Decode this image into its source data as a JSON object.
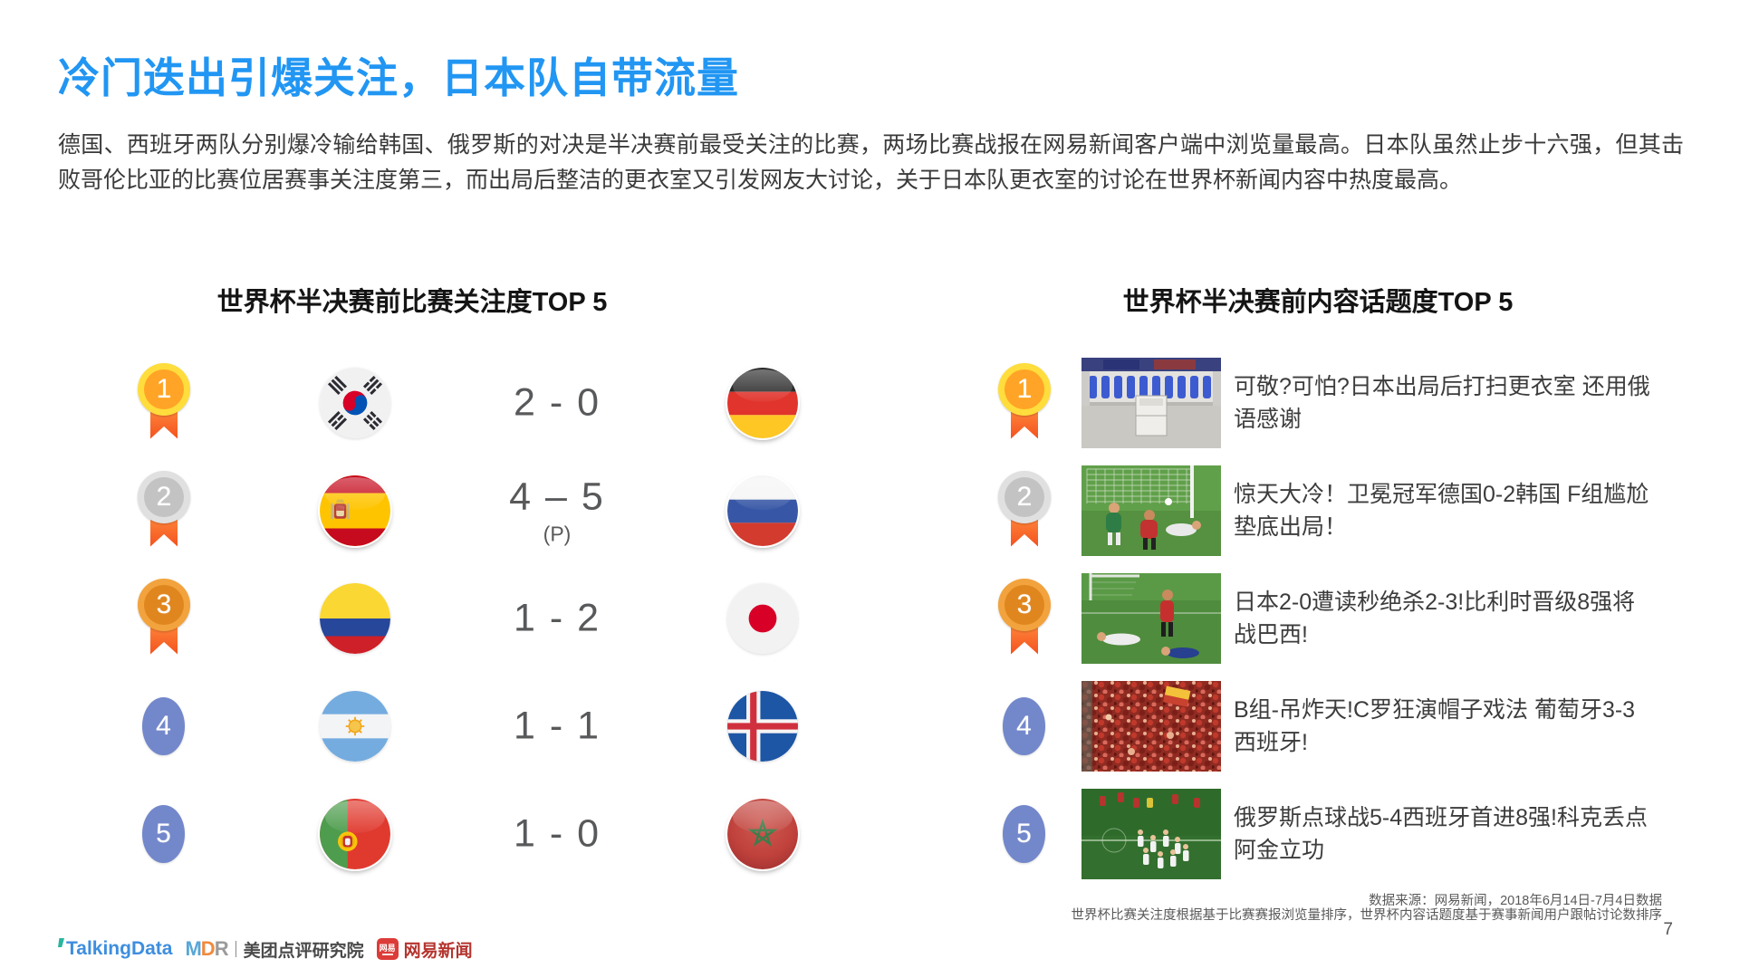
{
  "slide": {
    "title": "冷门迭出引爆关注，日本队自带流量",
    "intro": "德国、西班牙两队分别爆冷输给韩国、俄罗斯的对决是半决赛前最受关注的比赛，两场比赛战报在网易新闻客户端中浏览量最高。日本队虽然止步十六强，但其击败哥伦比亚的比赛位居赛事关注度第三，而出局后整洁的更衣室又引发网友大讨论，关于日本队更衣室的讨论在世界杯新闻内容中热度最高。",
    "page_number": "7"
  },
  "left_panel": {
    "header": "世界杯半决赛前比赛关注度TOP 5",
    "rows": [
      {
        "rank": "1",
        "home_flag": "south-korea",
        "score": "2 - 0",
        "score_note": "",
        "away_flag": "germany"
      },
      {
        "rank": "2",
        "home_flag": "spain",
        "score": "4 – 5",
        "score_note": "(P)",
        "away_flag": "russia"
      },
      {
        "rank": "3",
        "home_flag": "colombia",
        "score": "1 - 2",
        "score_note": "",
        "away_flag": "japan"
      },
      {
        "rank": "4",
        "home_flag": "argentina",
        "score": "1 - 1",
        "score_note": "",
        "away_flag": "iceland"
      },
      {
        "rank": "5",
        "home_flag": "portugal",
        "score": "1 - 0",
        "score_note": "",
        "away_flag": "morocco"
      }
    ]
  },
  "right_panel": {
    "header": "世界杯半决赛前内容话题度TOP 5",
    "rows": [
      {
        "rank": "1",
        "thumb": "japan-locker-room",
        "headline": "可敬?可怕?日本出局后打扫更衣室 还用俄语感谢"
      },
      {
        "rank": "2",
        "thumb": "germany-korea-goal",
        "headline": "惊天大冷！卫冕冠军德国0-2韩国 F组尴尬垫底出局！"
      },
      {
        "rank": "3",
        "thumb": "japan-belgium-pitch",
        "headline": "日本2-0遭读秒绝杀2-3!比利时晋级8强将战巴西!"
      },
      {
        "rank": "4",
        "thumb": "portugal-spain-crowd",
        "headline": "B组-吊炸天!C罗狂演帽子戏法 葡萄牙3-3西班牙!"
      },
      {
        "rank": "5",
        "thumb": "russia-spain-celebration",
        "headline": "俄罗斯点球战5-4西班牙首进8强!科克丢点阿金立功"
      }
    ]
  },
  "footer": {
    "source_line1": "数据来源：网易新闻，2018年6月14日-7月4日数据",
    "source_line2": "世界杯比赛关注度根据基于比赛赛报浏览量排序，世界杯内容话题度基于赛事新闻用户跟帖讨论数排序",
    "logos": {
      "talkingdata": "TalkingData",
      "mdr_letters": [
        "M",
        "D",
        "R"
      ],
      "meituan": "美团点评研究院",
      "netease_badge": "网易",
      "netease": "网易新闻"
    }
  },
  "colors": {
    "title_blue": "#2196F3",
    "gold_medal": "#FFA426",
    "silver_medal": "#C3C3C3",
    "bronze_medal": "#E0861F",
    "ribbon_orange": "#F4511E",
    "rank_badge_blue": "#7387CB",
    "score_gray": "#58595B",
    "talkingdata_blue": "#3E8EDE",
    "mdr_orange": "#F08A3C",
    "netease_red": "#DC3C38"
  }
}
